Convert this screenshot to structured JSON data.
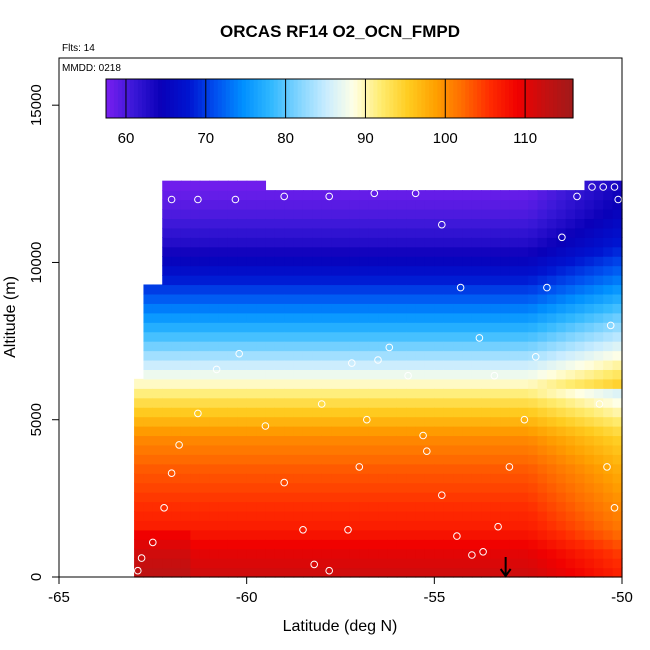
{
  "chart_data": {
    "type": "heatmap",
    "title": "ORCAS RF14 O2_OCN_FMPD",
    "note_flights": "Flts: 14",
    "note_date": "MMDD: 0218",
    "xlabel": "Latitude (deg N)",
    "ylabel": "Altitude (m)",
    "xlim": [
      -65,
      -50
    ],
    "ylim": [
      0,
      16500
    ],
    "x_ticks": [
      -65,
      -60,
      -55,
      -50
    ],
    "x_tick_labels": [
      "-65",
      "-60",
      "-55",
      "-50"
    ],
    "y_ticks": [
      0,
      5000,
      10000,
      15000
    ],
    "y_tick_labels": [
      "0",
      "5000",
      "10000",
      "15000"
    ],
    "colorbar": {
      "range": [
        57.5,
        116
      ],
      "ticks": [
        60,
        70,
        80,
        90,
        100,
        110
      ],
      "tick_labels": [
        "60",
        "70",
        "80",
        "90",
        "100",
        "110"
      ],
      "colors": [
        "#7a1ff0",
        "#3a18d8",
        "#0a00b8",
        "#0014d0",
        "#0050f0",
        "#0090ff",
        "#30b8ff",
        "#80d4ff",
        "#c8ecff",
        "#ffffe6",
        "#ffec70",
        "#ffcc20",
        "#ffa000",
        "#ff6a00",
        "#ff2a00",
        "#f00000",
        "#c41010",
        "#a01a1a"
      ]
    },
    "field_profile": {
      "altitude_m": [
        0,
        800,
        1500,
        2500,
        3500,
        4500,
        5500,
        6500,
        7500,
        8500,
        9500,
        10500,
        11500,
        12500
      ],
      "value": [
        112,
        110,
        107,
        105,
        103,
        100,
        94,
        87,
        80,
        74,
        68,
        63,
        60,
        58
      ]
    },
    "data_extent": [
      {
        "lat_start": -63.0,
        "lat_end": -62.8,
        "alt_top": 6200
      },
      {
        "lat_start": -62.8,
        "lat_end": -62.2,
        "alt_top": 9200
      },
      {
        "lat_start": -62.2,
        "lat_end": -59.5,
        "alt_top": 12400
      },
      {
        "lat_start": -59.5,
        "lat_end": -51.0,
        "alt_top": 12300
      },
      {
        "lat_start": -51.0,
        "lat_end": -50.0,
        "alt_top": 12600
      }
    ],
    "flight_track": [
      {
        "lat": -62.9,
        "alt": 200
      },
      {
        "lat": -62.8,
        "alt": 600
      },
      {
        "lat": -62.5,
        "alt": 1100
      },
      {
        "lat": -62.2,
        "alt": 2200
      },
      {
        "lat": -62.0,
        "alt": 3300
      },
      {
        "lat": -61.8,
        "alt": 4200
      },
      {
        "lat": -61.3,
        "alt": 5200
      },
      {
        "lat": -60.8,
        "alt": 6600
      },
      {
        "lat": -60.2,
        "alt": 7100
      },
      {
        "lat": -59.5,
        "alt": 4800
      },
      {
        "lat": -59.0,
        "alt": 3000
      },
      {
        "lat": -58.5,
        "alt": 1500
      },
      {
        "lat": -58.2,
        "alt": 400
      },
      {
        "lat": -57.8,
        "alt": 200
      },
      {
        "lat": -57.3,
        "alt": 1500
      },
      {
        "lat": -57.0,
        "alt": 3500
      },
      {
        "lat": -56.8,
        "alt": 5000
      },
      {
        "lat": -56.5,
        "alt": 6900
      },
      {
        "lat": -56.2,
        "alt": 7300
      },
      {
        "lat": -55.7,
        "alt": 6400
      },
      {
        "lat": -55.3,
        "alt": 4500
      },
      {
        "lat": -54.8,
        "alt": 2600
      },
      {
        "lat": -54.4,
        "alt": 1300
      },
      {
        "lat": -54.0,
        "alt": 700
      },
      {
        "lat": -53.7,
        "alt": 800
      },
      {
        "lat": -53.3,
        "alt": 1600
      },
      {
        "lat": -53.0,
        "alt": 3500
      },
      {
        "lat": -52.6,
        "alt": 5000
      },
      {
        "lat": -52.3,
        "alt": 7000
      },
      {
        "lat": -52.0,
        "alt": 9200
      },
      {
        "lat": -51.6,
        "alt": 10800
      },
      {
        "lat": -51.2,
        "alt": 12100
      },
      {
        "lat": -50.8,
        "alt": 12400
      },
      {
        "lat": -50.5,
        "alt": 12400
      },
      {
        "lat": -50.2,
        "alt": 12400
      },
      {
        "lat": -50.1,
        "alt": 12000
      },
      {
        "lat": -50.3,
        "alt": 8000
      },
      {
        "lat": -50.6,
        "alt": 5500
      },
      {
        "lat": -50.4,
        "alt": 3500
      },
      {
        "lat": -50.2,
        "alt": 2200
      },
      {
        "lat": -62.0,
        "alt": 12000
      },
      {
        "lat": -61.3,
        "alt": 12000
      },
      {
        "lat": -60.3,
        "alt": 12000
      },
      {
        "lat": -59.0,
        "alt": 12100
      },
      {
        "lat": -57.8,
        "alt": 12100
      },
      {
        "lat": -56.6,
        "alt": 12200
      },
      {
        "lat": -55.5,
        "alt": 12200
      },
      {
        "lat": -54.8,
        "alt": 11200
      },
      {
        "lat": -54.3,
        "alt": 9200
      },
      {
        "lat": -53.8,
        "alt": 7600
      },
      {
        "lat": -53.4,
        "alt": 6400
      },
      {
        "lat": -57.2,
        "alt": 6800
      },
      {
        "lat": -58.0,
        "alt": 5500
      },
      {
        "lat": -55.2,
        "alt": 4000
      }
    ],
    "marker": {
      "lat": -53.1,
      "alt": 0,
      "symbol": "arrow-down"
    }
  }
}
